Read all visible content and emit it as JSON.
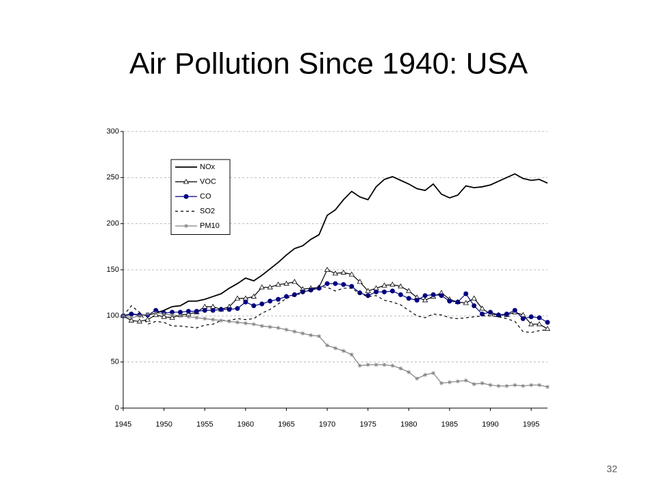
{
  "chart_data": {
    "type": "line",
    "title": "Air Pollution Since 1940: USA",
    "page_number": "32",
    "x": [
      1945,
      1946,
      1947,
      1948,
      1949,
      1950,
      1951,
      1952,
      1953,
      1954,
      1955,
      1956,
      1957,
      1958,
      1959,
      1960,
      1961,
      1962,
      1963,
      1964,
      1965,
      1966,
      1967,
      1968,
      1969,
      1970,
      1971,
      1972,
      1973,
      1974,
      1975,
      1976,
      1977,
      1978,
      1979,
      1980,
      1981,
      1982,
      1983,
      1984,
      1985,
      1986,
      1987,
      1988,
      1989,
      1990,
      1991,
      1992,
      1993,
      1994,
      1995,
      1996,
      1997
    ],
    "series": [
      {
        "name": "NOx",
        "color": "#000000",
        "marker": "none",
        "dash": false,
        "values": [
          100,
          102,
          101,
          101,
          103,
          106,
          110,
          111,
          116,
          116,
          118,
          121,
          124,
          130,
          135,
          141,
          138,
          144,
          151,
          158,
          166,
          173,
          176,
          183,
          188,
          209,
          215,
          226,
          235,
          229,
          226,
          240,
          248,
          251,
          247,
          243,
          238,
          236,
          243,
          232,
          228,
          231,
          241,
          239,
          240,
          242,
          246,
          250,
          254,
          249,
          247,
          248,
          244
        ]
      },
      {
        "name": "VOC",
        "color": "#000000",
        "marker": "triangle",
        "dash": false,
        "values": [
          100,
          95,
          94,
          96,
          101,
          99,
          98,
          101,
          102,
          104,
          110,
          110,
          107,
          110,
          119,
          119,
          121,
          131,
          131,
          134,
          135,
          137,
          129,
          130,
          131,
          150,
          146,
          147,
          145,
          137,
          127,
          130,
          133,
          134,
          132,
          127,
          120,
          117,
          121,
          125,
          118,
          115,
          114,
          119,
          108,
          102,
          101,
          101,
          104,
          101,
          91,
          91,
          86
        ]
      },
      {
        "name": "CO",
        "color": "#000080",
        "marker": "circle",
        "dash": false,
        "values": [
          100,
          102,
          101,
          101,
          106,
          103,
          104,
          104,
          105,
          105,
          106,
          106,
          107,
          107,
          108,
          115,
          111,
          113,
          116,
          118,
          121,
          123,
          126,
          128,
          130,
          135,
          135,
          134,
          132,
          125,
          122,
          126,
          126,
          127,
          123,
          119,
          117,
          122,
          123,
          122,
          116,
          115,
          124,
          111,
          102,
          104,
          101,
          102,
          106,
          97,
          99,
          98,
          93
        ]
      },
      {
        "name": "SO2",
        "color": "#000000",
        "marker": "none",
        "dash": true,
        "values": [
          100,
          111,
          104,
          91,
          94,
          93,
          89,
          89,
          88,
          87,
          90,
          91,
          95,
          95,
          97,
          96,
          97,
          103,
          107,
          113,
          119,
          122,
          125,
          128,
          132,
          131,
          127,
          130,
          130,
          124,
          121,
          122,
          117,
          115,
          112,
          106,
          100,
          98,
          102,
          101,
          98,
          97,
          98,
          99,
          100,
          100,
          99,
          97,
          94,
          83,
          82,
          84,
          85
        ]
      },
      {
        "name": "PM10",
        "color": "#808080",
        "marker": "star",
        "dash": false,
        "values": [
          100,
          98,
          100,
          102,
          103,
          102,
          101,
          100,
          99,
          98,
          97,
          96,
          95,
          94,
          93,
          92,
          91,
          89,
          88,
          87,
          85,
          83,
          81,
          79,
          78,
          68,
          65,
          62,
          58,
          46,
          47,
          47,
          47,
          46,
          43,
          39,
          32,
          36,
          38,
          27,
          28,
          29,
          30,
          26,
          27,
          25,
          24,
          24,
          25,
          24,
          25,
          25,
          23
        ]
      }
    ],
    "xlim": [
      1945,
      1997
    ],
    "xticks": [
      1945,
      1950,
      1955,
      1960,
      1965,
      1970,
      1975,
      1980,
      1985,
      1990,
      1995
    ],
    "ylim": [
      0,
      300
    ],
    "yticks": [
      0,
      50,
      100,
      150,
      200,
      250,
      300
    ],
    "grid": true,
    "legend": "upper-left"
  }
}
